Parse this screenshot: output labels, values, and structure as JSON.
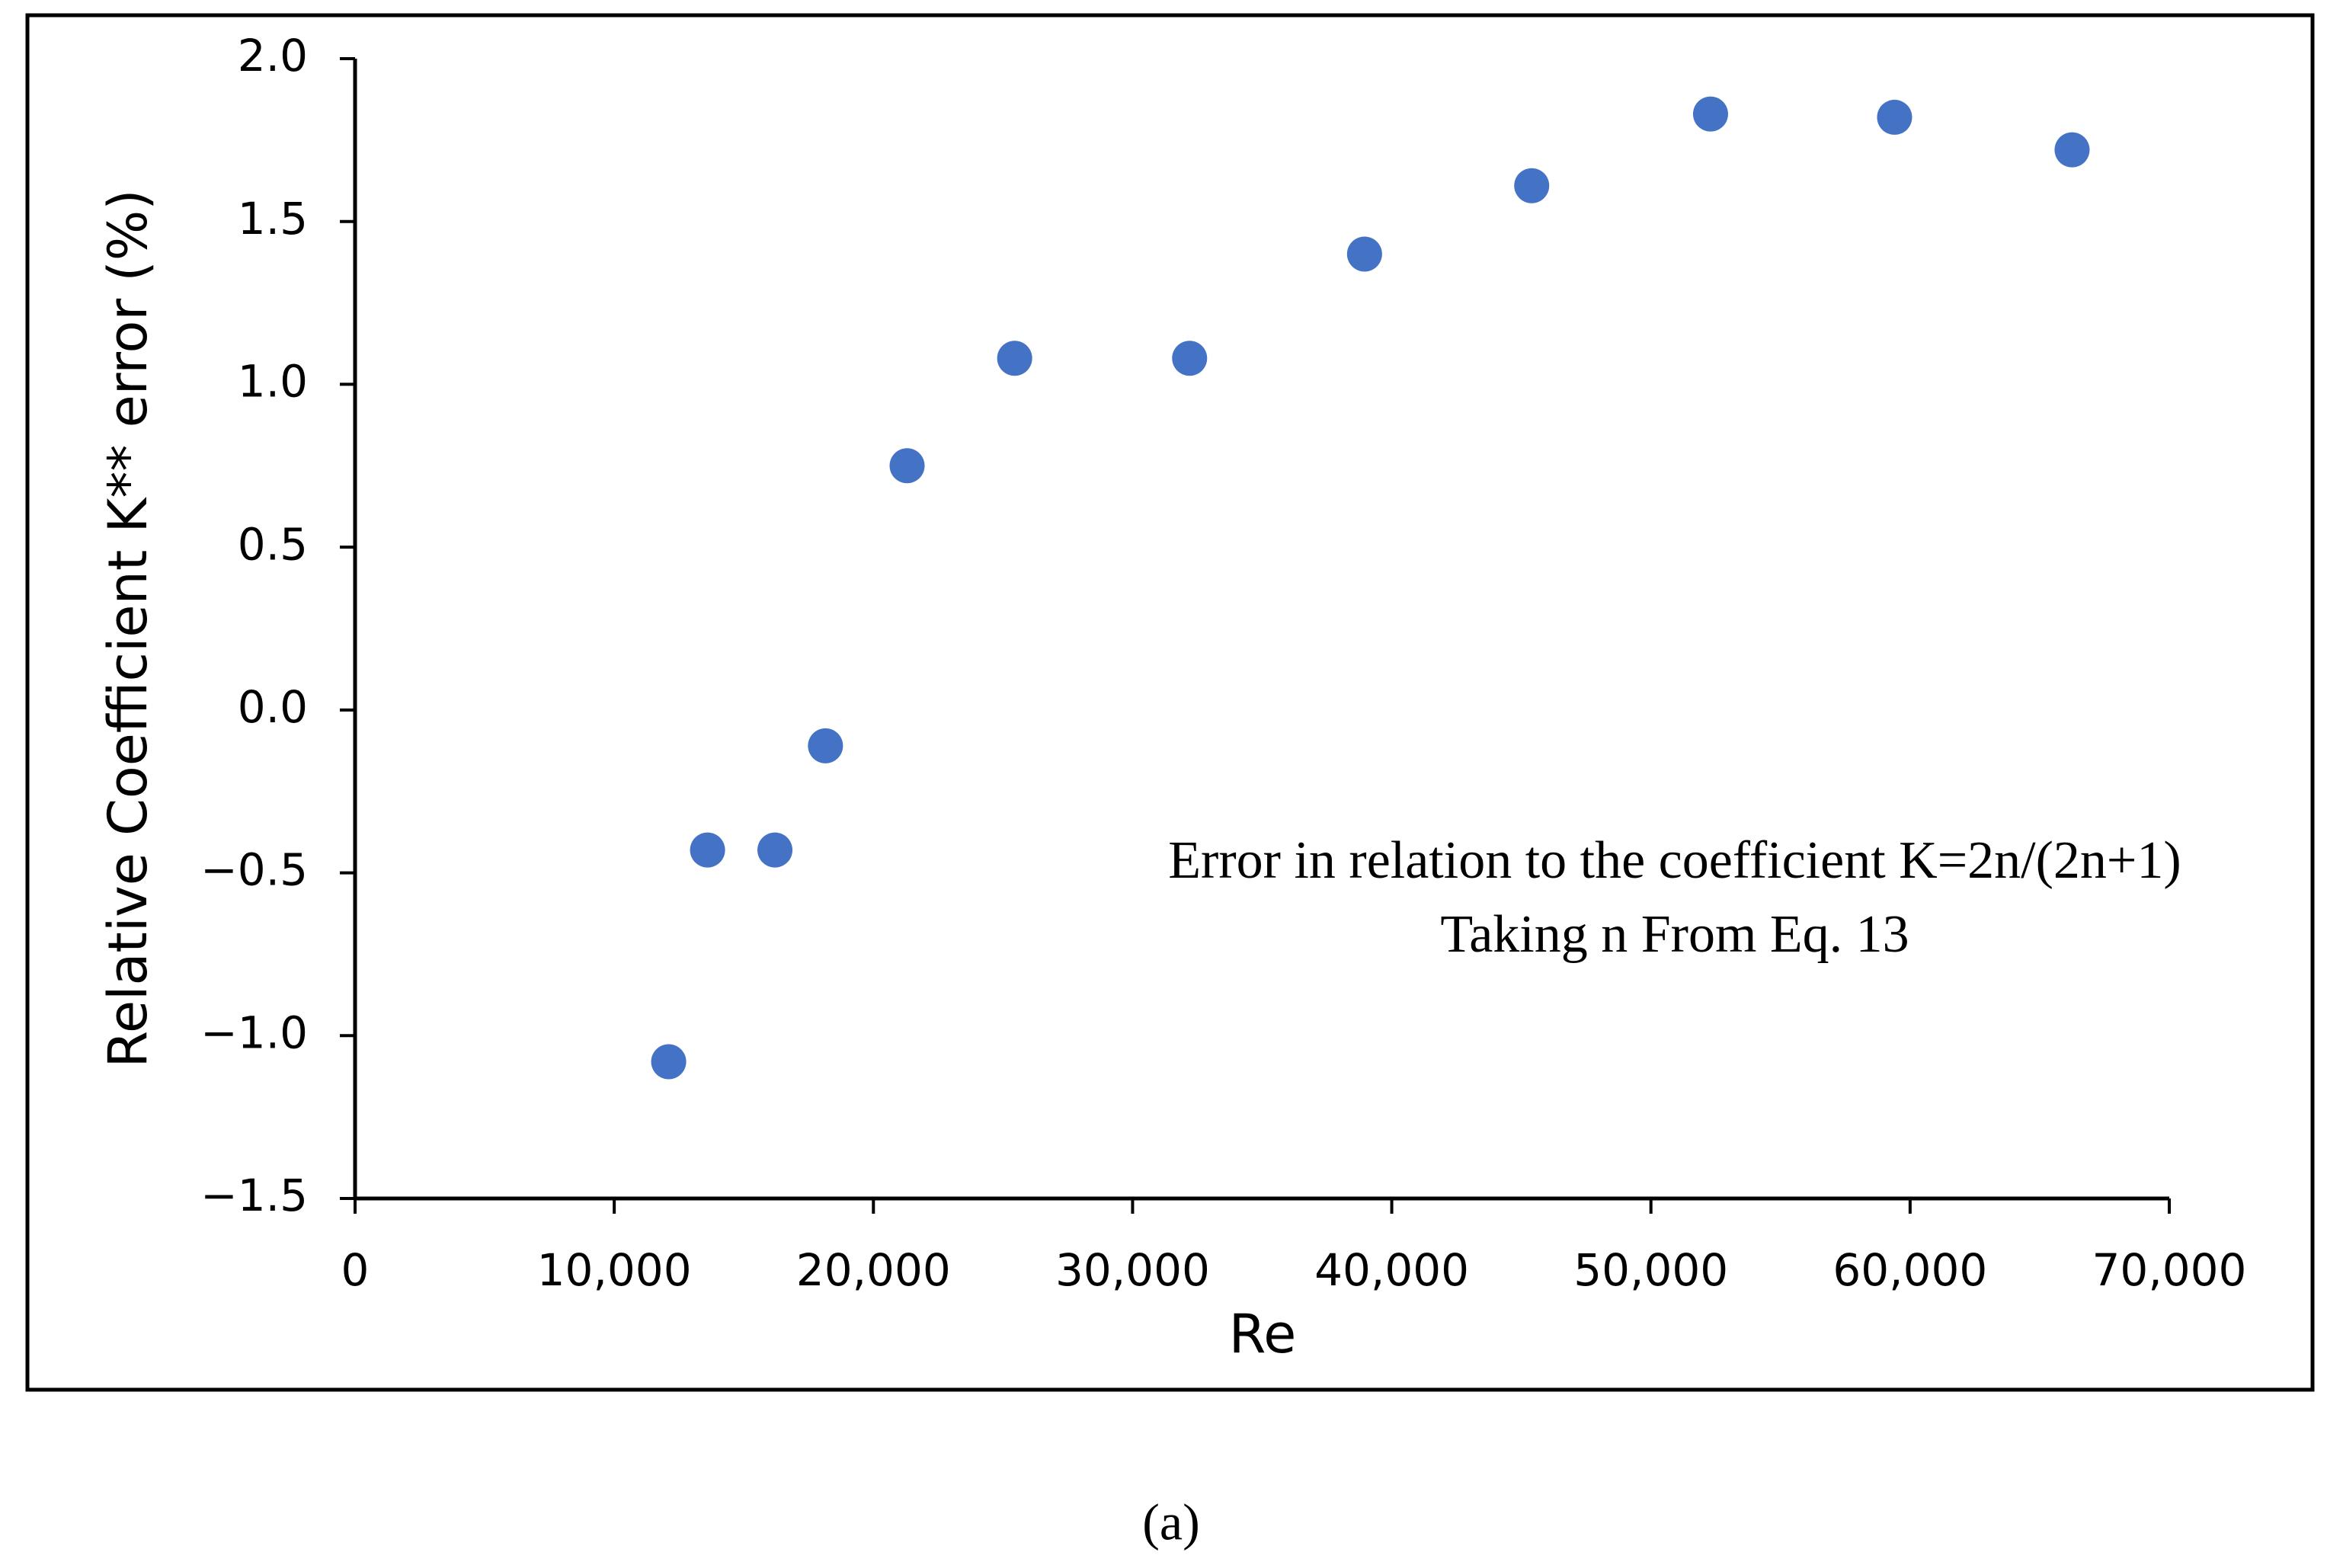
{
  "chart_data": {
    "type": "scatter",
    "x_label": "Re",
    "y_label": "Relative Coefficient K** error (%)",
    "annotations": [
      "Error in relation to the coefficient K=2n/(2n+1)",
      "Taking n From Eq. 13"
    ],
    "caption": "(a)",
    "color": "#4472c4",
    "x": [
      12100,
      13600,
      16200,
      18150,
      21300,
      25450,
      32200,
      38950,
      45400,
      52300,
      59400,
      66250
    ],
    "values": [
      -1.08,
      -0.43,
      -0.43,
      -0.11,
      0.75,
      1.08,
      1.08,
      1.4,
      1.61,
      1.83,
      1.82,
      1.72
    ],
    "xlim": [
      0,
      70000
    ],
    "xticks": [
      0,
      {
        "value": 10000,
        "label": "10,000"
      },
      {
        "value": 20000,
        "label": "20,000"
      },
      {
        "value": 30000,
        "label": "30,000"
      },
      {
        "value": 40000,
        "label": "40,000"
      },
      {
        "value": 50000,
        "label": "50,000"
      },
      {
        "value": 60000,
        "label": "60,000"
      },
      {
        "value": 70000,
        "label": "70,000"
      }
    ],
    "ylim": [
      -1.5,
      2.0
    ],
    "yticks": [
      {
        "value": -1.5,
        "label": "−1.5"
      },
      {
        "value": -1.0,
        "label": "−1.0"
      },
      {
        "value": -0.5,
        "label": "−0.5"
      },
      {
        "value": 0,
        "label": "0.0"
      },
      0.5,
      {
        "value": 1.0,
        "label": "1.0"
      },
      1.5,
      {
        "value": 2.0,
        "label": "2.0"
      }
    ],
    "grid": false
  }
}
